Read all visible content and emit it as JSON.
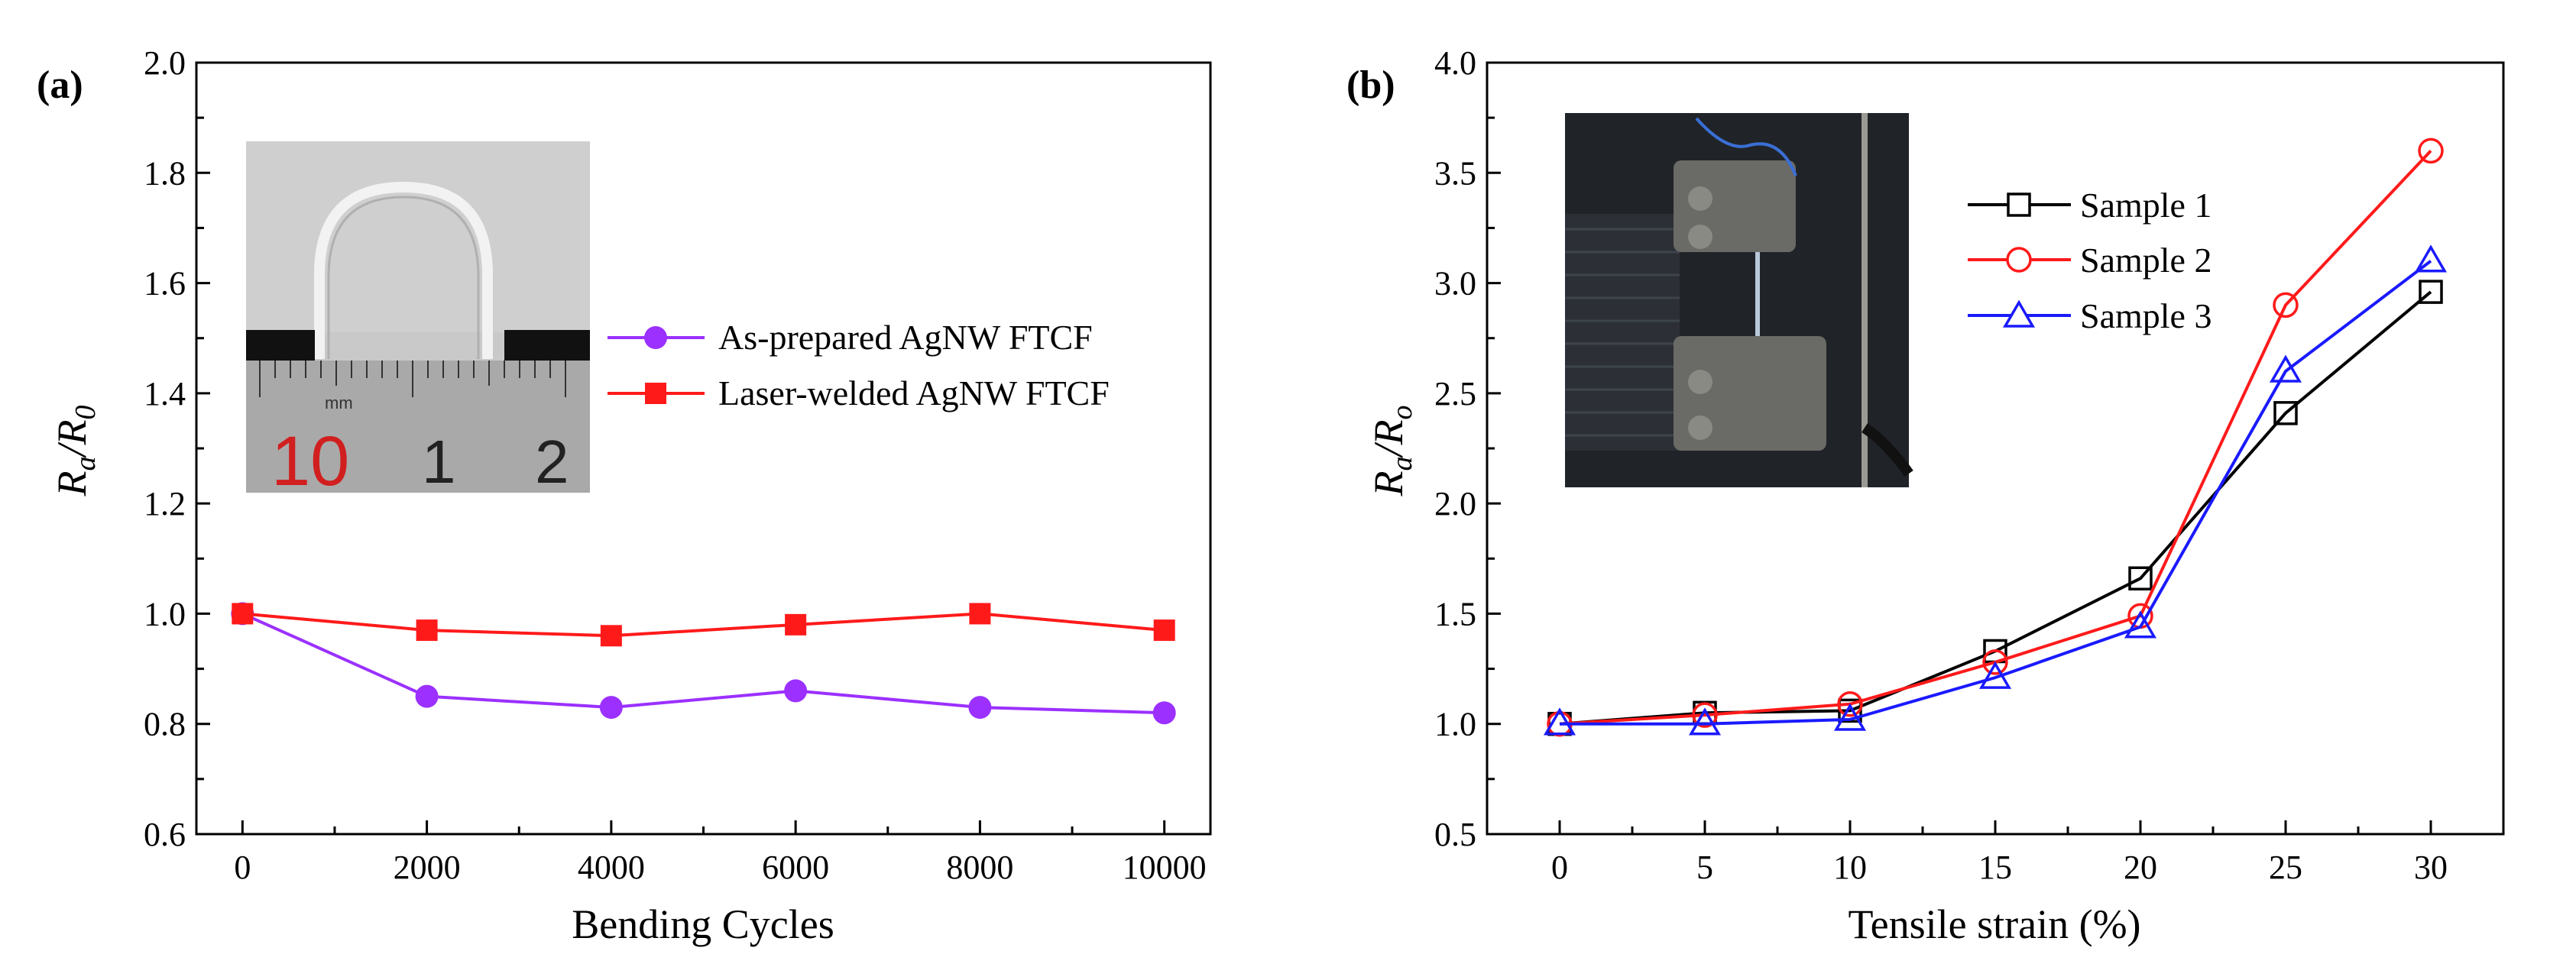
{
  "chart_data": [
    {
      "panel": "(a)",
      "type": "line",
      "xlabel": "Bending Cycles",
      "ylabel": "Ra/R0",
      "ylabel_parts": {
        "main": "R",
        "sub1": "a",
        "slash": "/R",
        "sub2": "0"
      },
      "xlim": [
        -500,
        10500
      ],
      "ylim": [
        0.6,
        2.0
      ],
      "xticks": [
        0,
        2000,
        4000,
        6000,
        8000,
        10000
      ],
      "xtick_labels": [
        "0",
        "2000",
        "4000",
        "6000",
        "8000",
        "10000"
      ],
      "yticks": [
        0.6,
        0.8,
        1.0,
        1.2,
        1.4,
        1.6,
        1.8,
        2.0
      ],
      "ytick_labels": [
        "0.6",
        "0.8",
        "1.0",
        "1.2",
        "1.4",
        "1.6",
        "1.8",
        "2.0"
      ],
      "x": [
        0,
        2000,
        4000,
        6000,
        8000,
        10000
      ],
      "series": [
        {
          "name": "As-prepared AgNW FTCF",
          "color": "#9b30ff",
          "marker": "circle-filled",
          "values": [
            1.0,
            0.85,
            0.83,
            0.86,
            0.83,
            0.82
          ]
        },
        {
          "name": "Laser-welded AgNW FTCF",
          "color": "#ff1a1a",
          "marker": "square-filled",
          "values": [
            1.0,
            0.97,
            0.96,
            0.98,
            1.0,
            0.97
          ]
        }
      ],
      "inset": {
        "ruler_labels": [
          "mm",
          "10",
          "1",
          "2"
        ]
      }
    },
    {
      "panel": "(b)",
      "type": "line",
      "xlabel": "Tensile strain (%)",
      "ylabel": "Ra/Ro",
      "ylabel_parts": {
        "main": "R",
        "sub1": "a",
        "slash": "/R",
        "sub2": "o"
      },
      "xlim": [
        -2.5,
        32.5
      ],
      "ylim": [
        0.5,
        4.0
      ],
      "xticks": [
        0,
        5,
        10,
        15,
        20,
        25,
        30
      ],
      "xtick_labels": [
        "0",
        "5",
        "10",
        "15",
        "20",
        "25",
        "30"
      ],
      "yticks": [
        0.5,
        1.0,
        1.5,
        2.0,
        2.5,
        3.0,
        3.5,
        4.0
      ],
      "ytick_labels": [
        "0.5",
        "1.0",
        "1.5",
        "2.0",
        "2.5",
        "3.0",
        "3.5",
        "4.0"
      ],
      "x": [
        0,
        5,
        10,
        15,
        20,
        25,
        30
      ],
      "series": [
        {
          "name": "Sample 1",
          "color": "#000000",
          "marker": "square-open",
          "values": [
            1.0,
            1.05,
            1.06,
            1.33,
            1.66,
            2.41,
            2.96
          ]
        },
        {
          "name": "Sample 2",
          "color": "#ff1a1a",
          "marker": "circle-open",
          "values": [
            1.0,
            1.04,
            1.09,
            1.28,
            1.49,
            2.9,
            3.6
          ]
        },
        {
          "name": "Sample 3",
          "color": "#1a1aff",
          "marker": "triangle-open",
          "values": [
            1.0,
            1.0,
            1.02,
            1.21,
            1.44,
            2.6,
            3.1
          ]
        }
      ]
    }
  ]
}
